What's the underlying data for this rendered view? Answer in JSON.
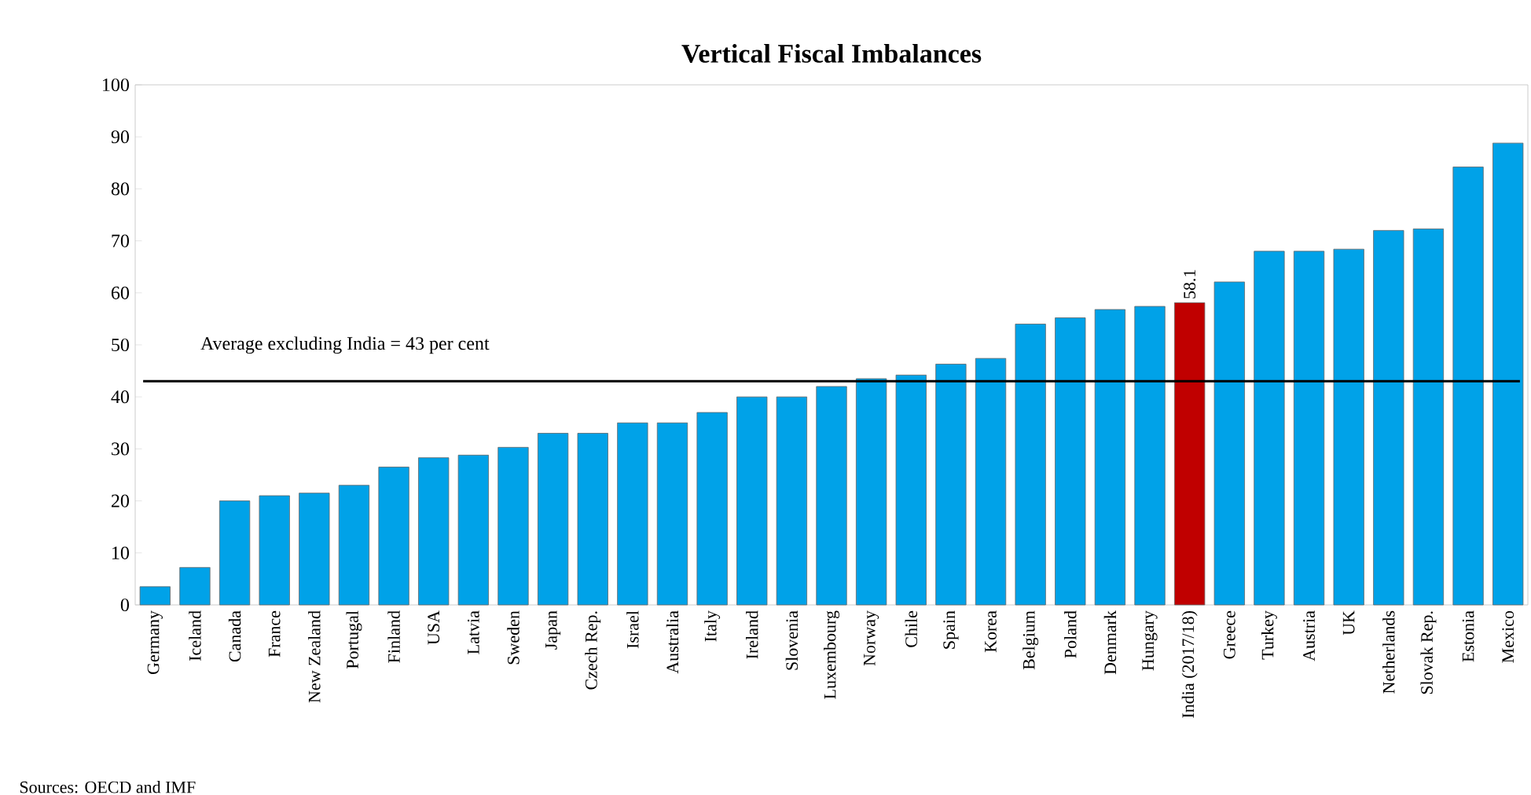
{
  "chart_data": {
    "type": "bar",
    "title": "Vertical Fiscal Imbalances",
    "categories": [
      "Germany",
      "Iceland",
      "Canada",
      "France",
      "New Zealand",
      "Portugal",
      "Finland",
      "USA",
      "Latvia",
      "Sweden",
      "Japan",
      "Czech Rep.",
      "Israel",
      "Australia",
      "Italy",
      "Ireland",
      "Slovenia",
      "Luxembourg",
      "Norway",
      "Chile",
      "Spain",
      "Korea",
      "Belgium",
      "Poland",
      "Denmark",
      "Hungary",
      "India (2017/18)",
      "Greece",
      "Turkey",
      "Austria",
      "UK",
      "Netherlands",
      "Slovak Rep.",
      "Estonia",
      "Mexico"
    ],
    "values": [
      3.5,
      7.2,
      20,
      21,
      21.5,
      23,
      26.5,
      28.3,
      28.8,
      30.3,
      33,
      33,
      35,
      35,
      37,
      40,
      40,
      42,
      43.5,
      44.2,
      46.3,
      47.4,
      54,
      55.2,
      56.8,
      57.4,
      58.1,
      62.1,
      68,
      68,
      68.4,
      72,
      72.3,
      84.2,
      88.8
    ],
    "colors": [
      "#00a2e8",
      "#00a2e8",
      "#00a2e8",
      "#00a2e8",
      "#00a2e8",
      "#00a2e8",
      "#00a2e8",
      "#00a2e8",
      "#00a2e8",
      "#00a2e8",
      "#00a2e8",
      "#00a2e8",
      "#00a2e8",
      "#00a2e8",
      "#00a2e8",
      "#00a2e8",
      "#00a2e8",
      "#00a2e8",
      "#00a2e8",
      "#00a2e8",
      "#00a2e8",
      "#00a2e8",
      "#00a2e8",
      "#00a2e8",
      "#00a2e8",
      "#00a2e8",
      "#c00000",
      "#00a2e8",
      "#00a2e8",
      "#00a2e8",
      "#00a2e8",
      "#00a2e8",
      "#00a2e8",
      "#00a2e8",
      "#00a2e8"
    ],
    "value_labels": [
      null,
      null,
      null,
      null,
      null,
      null,
      null,
      null,
      null,
      null,
      null,
      null,
      null,
      null,
      null,
      null,
      null,
      null,
      null,
      null,
      null,
      null,
      null,
      null,
      null,
      null,
      "58.1",
      null,
      null,
      null,
      null,
      null,
      null,
      null,
      null
    ],
    "ylim": [
      0,
      100
    ],
    "yticks": [
      0,
      10,
      20,
      30,
      40,
      50,
      60,
      70,
      80,
      90,
      100
    ],
    "ref_lines": [
      {
        "axis": "y",
        "value": 43,
        "label": "Average excluding India = 43 per cent",
        "color": "#000000"
      }
    ],
    "annotations": [
      "Sources: OECD and IMF"
    ]
  }
}
